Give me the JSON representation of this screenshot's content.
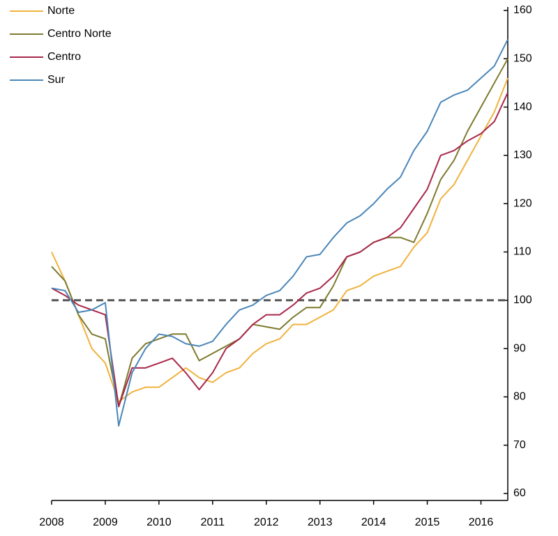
{
  "chart_data": {
    "type": "line",
    "x": [
      2008,
      2008.25,
      2008.5,
      2008.75,
      2009,
      2009.25,
      2009.5,
      2009.75,
      2010,
      2010.25,
      2010.5,
      2010.75,
      2011,
      2011.25,
      2011.5,
      2011.75,
      2012,
      2012.25,
      2012.5,
      2012.75,
      2013,
      2013.25,
      2013.5,
      2013.75,
      2014,
      2014.25,
      2014.5,
      2014.75,
      2015,
      2015.25,
      2015.5,
      2015.75,
      2016,
      2016.25,
      2016.5
    ],
    "series": [
      {
        "name": "Norte",
        "color": "#f0b23e",
        "values": [
          110,
          104,
          97,
          90,
          87,
          79,
          81,
          82,
          82,
          84,
          86,
          84,
          83,
          85,
          86,
          89,
          91,
          92,
          95,
          95,
          96.5,
          98,
          102,
          103,
          105,
          106,
          107,
          111,
          114,
          121,
          124,
          129,
          134,
          139,
          146
        ]
      },
      {
        "name": "Centro Norte",
        "color": "#7d7a2e",
        "values": [
          107,
          104,
          97,
          93,
          92,
          78,
          88,
          91,
          92,
          93,
          93,
          87.5,
          89,
          90.5,
          92,
          95,
          94.5,
          94,
          96.5,
          98.5,
          98.5,
          103,
          109,
          110,
          112,
          113,
          113,
          112,
          118,
          125,
          129,
          135,
          140,
          145,
          150
        ]
      },
      {
        "name": "Centro",
        "color": "#a8274a",
        "values": [
          102.5,
          101,
          99,
          98,
          97,
          78,
          86,
          86,
          87,
          88,
          85,
          81.5,
          85,
          90,
          92,
          95,
          97,
          97,
          99,
          101.5,
          102.5,
          105,
          109,
          110,
          112,
          113,
          115,
          119,
          123,
          130,
          131,
          133,
          134.5,
          137,
          143
        ]
      },
      {
        "name": "Sur",
        "color": "#4a86b8",
        "values": [
          102.5,
          102,
          97.5,
          98,
          99.5,
          74,
          85,
          90,
          93,
          92.5,
          91,
          90.5,
          91.5,
          95,
          98,
          99,
          101,
          102,
          105,
          109,
          109.5,
          113,
          116,
          117.5,
          120,
          123,
          125.5,
          131,
          135,
          141,
          142.5,
          143.5,
          146,
          148.5,
          154
        ]
      }
    ],
    "xlim": [
      2008,
      2016.5
    ],
    "xticks": [
      2008,
      2009,
      2010,
      2011,
      2012,
      2013,
      2014,
      2015,
      2016
    ],
    "ylim": [
      60,
      160
    ],
    "yticks": [
      60,
      70,
      80,
      90,
      100,
      110,
      120,
      130,
      140,
      150,
      160
    ],
    "hline": 100,
    "y_axis_side": "right",
    "legend": "upper left"
  }
}
